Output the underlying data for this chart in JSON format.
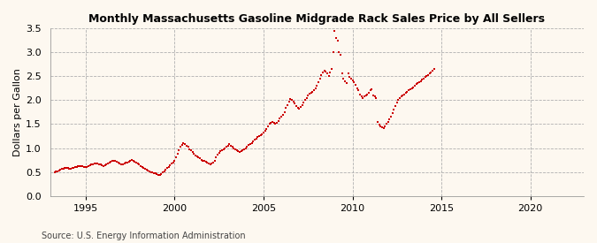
{
  "title": "Monthly Massachusetts Gasoline Midgrade Rack Sales Price by All Sellers",
  "ylabel": "Dollars per Gallon",
  "source": "Source: U.S. Energy Information Administration",
  "background_color": "#fdf8f0",
  "plot_bg_color": "#fdf8f0",
  "marker_color": "#cc0000",
  "xlim": [
    1993.0,
    2023.0
  ],
  "ylim": [
    0.0,
    3.5
  ],
  "yticks": [
    0.0,
    0.5,
    1.0,
    1.5,
    2.0,
    2.5,
    3.0,
    3.5
  ],
  "xticks": [
    1995,
    2000,
    2005,
    2010,
    2015,
    2020
  ],
  "data": [
    [
      1993.25,
      0.5
    ],
    [
      1993.33,
      0.51
    ],
    [
      1993.42,
      0.52
    ],
    [
      1993.5,
      0.53
    ],
    [
      1993.58,
      0.54
    ],
    [
      1993.67,
      0.56
    ],
    [
      1993.75,
      0.57
    ],
    [
      1993.83,
      0.58
    ],
    [
      1993.92,
      0.59
    ],
    [
      1994.0,
      0.58
    ],
    [
      1994.08,
      0.57
    ],
    [
      1994.17,
      0.57
    ],
    [
      1994.25,
      0.58
    ],
    [
      1994.33,
      0.59
    ],
    [
      1994.42,
      0.6
    ],
    [
      1994.5,
      0.61
    ],
    [
      1994.58,
      0.62
    ],
    [
      1994.67,
      0.63
    ],
    [
      1994.75,
      0.63
    ],
    [
      1994.83,
      0.62
    ],
    [
      1994.92,
      0.61
    ],
    [
      1995.0,
      0.6
    ],
    [
      1995.08,
      0.61
    ],
    [
      1995.17,
      0.62
    ],
    [
      1995.25,
      0.64
    ],
    [
      1995.33,
      0.65
    ],
    [
      1995.42,
      0.66
    ],
    [
      1995.5,
      0.67
    ],
    [
      1995.58,
      0.68
    ],
    [
      1995.67,
      0.67
    ],
    [
      1995.75,
      0.66
    ],
    [
      1995.83,
      0.65
    ],
    [
      1995.92,
      0.64
    ],
    [
      1996.0,
      0.63
    ],
    [
      1996.08,
      0.64
    ],
    [
      1996.17,
      0.66
    ],
    [
      1996.25,
      0.68
    ],
    [
      1996.33,
      0.7
    ],
    [
      1996.42,
      0.72
    ],
    [
      1996.5,
      0.73
    ],
    [
      1996.58,
      0.74
    ],
    [
      1996.67,
      0.73
    ],
    [
      1996.75,
      0.71
    ],
    [
      1996.83,
      0.69
    ],
    [
      1996.92,
      0.67
    ],
    [
      1997.0,
      0.65
    ],
    [
      1997.08,
      0.66
    ],
    [
      1997.17,
      0.67
    ],
    [
      1997.25,
      0.69
    ],
    [
      1997.33,
      0.7
    ],
    [
      1997.42,
      0.72
    ],
    [
      1997.5,
      0.74
    ],
    [
      1997.58,
      0.75
    ],
    [
      1997.67,
      0.74
    ],
    [
      1997.75,
      0.72
    ],
    [
      1997.83,
      0.7
    ],
    [
      1997.92,
      0.68
    ],
    [
      1998.0,
      0.65
    ],
    [
      1998.08,
      0.63
    ],
    [
      1998.17,
      0.61
    ],
    [
      1998.25,
      0.59
    ],
    [
      1998.33,
      0.57
    ],
    [
      1998.42,
      0.55
    ],
    [
      1998.5,
      0.53
    ],
    [
      1998.58,
      0.51
    ],
    [
      1998.67,
      0.5
    ],
    [
      1998.75,
      0.49
    ],
    [
      1998.83,
      0.48
    ],
    [
      1998.92,
      0.47
    ],
    [
      1999.0,
      0.45
    ],
    [
      1999.08,
      0.43
    ],
    [
      1999.17,
      0.44
    ],
    [
      1999.25,
      0.46
    ],
    [
      1999.33,
      0.49
    ],
    [
      1999.42,
      0.52
    ],
    [
      1999.5,
      0.55
    ],
    [
      1999.58,
      0.58
    ],
    [
      1999.67,
      0.61
    ],
    [
      1999.75,
      0.64
    ],
    [
      1999.83,
      0.67
    ],
    [
      1999.92,
      0.7
    ],
    [
      2000.0,
      0.73
    ],
    [
      2000.08,
      0.8
    ],
    [
      2000.17,
      0.88
    ],
    [
      2000.25,
      0.95
    ],
    [
      2000.33,
      1.02
    ],
    [
      2000.42,
      1.07
    ],
    [
      2000.5,
      1.1
    ],
    [
      2000.58,
      1.08
    ],
    [
      2000.67,
      1.05
    ],
    [
      2000.75,
      1.02
    ],
    [
      2000.83,
      0.98
    ],
    [
      2000.92,
      0.95
    ],
    [
      2001.0,
      0.92
    ],
    [
      2001.08,
      0.88
    ],
    [
      2001.17,
      0.85
    ],
    [
      2001.25,
      0.83
    ],
    [
      2001.33,
      0.8
    ],
    [
      2001.42,
      0.78
    ],
    [
      2001.5,
      0.76
    ],
    [
      2001.58,
      0.74
    ],
    [
      2001.67,
      0.73
    ],
    [
      2001.75,
      0.71
    ],
    [
      2001.83,
      0.7
    ],
    [
      2001.92,
      0.68
    ],
    [
      2002.0,
      0.65
    ],
    [
      2002.08,
      0.67
    ],
    [
      2002.17,
      0.7
    ],
    [
      2002.25,
      0.73
    ],
    [
      2002.33,
      0.8
    ],
    [
      2002.42,
      0.86
    ],
    [
      2002.5,
      0.9
    ],
    [
      2002.58,
      0.93
    ],
    [
      2002.67,
      0.95
    ],
    [
      2002.75,
      0.98
    ],
    [
      2002.83,
      1.0
    ],
    [
      2002.92,
      1.03
    ],
    [
      2003.0,
      1.05
    ],
    [
      2003.08,
      1.08
    ],
    [
      2003.17,
      1.05
    ],
    [
      2003.25,
      1.02
    ],
    [
      2003.33,
      1.0
    ],
    [
      2003.42,
      0.97
    ],
    [
      2003.5,
      0.95
    ],
    [
      2003.58,
      0.93
    ],
    [
      2003.67,
      0.92
    ],
    [
      2003.75,
      0.93
    ],
    [
      2003.83,
      0.95
    ],
    [
      2003.92,
      0.97
    ],
    [
      2004.0,
      1.0
    ],
    [
      2004.08,
      1.03
    ],
    [
      2004.17,
      1.06
    ],
    [
      2004.25,
      1.08
    ],
    [
      2004.33,
      1.1
    ],
    [
      2004.42,
      1.13
    ],
    [
      2004.5,
      1.17
    ],
    [
      2004.58,
      1.2
    ],
    [
      2004.67,
      1.23
    ],
    [
      2004.75,
      1.25
    ],
    [
      2004.83,
      1.27
    ],
    [
      2004.92,
      1.29
    ],
    [
      2005.0,
      1.32
    ],
    [
      2005.08,
      1.36
    ],
    [
      2005.17,
      1.4
    ],
    [
      2005.25,
      1.45
    ],
    [
      2005.33,
      1.5
    ],
    [
      2005.42,
      1.53
    ],
    [
      2005.5,
      1.55
    ],
    [
      2005.58,
      1.52
    ],
    [
      2005.67,
      1.5
    ],
    [
      2005.75,
      1.53
    ],
    [
      2005.83,
      1.57
    ],
    [
      2005.92,
      1.61
    ],
    [
      2006.0,
      1.65
    ],
    [
      2006.08,
      1.7
    ],
    [
      2006.17,
      1.75
    ],
    [
      2006.25,
      1.83
    ],
    [
      2006.33,
      1.9
    ],
    [
      2006.42,
      1.97
    ],
    [
      2006.5,
      2.02
    ],
    [
      2006.58,
      2.0
    ],
    [
      2006.67,
      1.97
    ],
    [
      2006.75,
      1.93
    ],
    [
      2006.83,
      1.88
    ],
    [
      2006.92,
      1.84
    ],
    [
      2007.0,
      1.82
    ],
    [
      2007.08,
      1.85
    ],
    [
      2007.17,
      1.9
    ],
    [
      2007.25,
      1.95
    ],
    [
      2007.33,
      2.0
    ],
    [
      2007.42,
      2.05
    ],
    [
      2007.5,
      2.1
    ],
    [
      2007.58,
      2.13
    ],
    [
      2007.67,
      2.15
    ],
    [
      2007.75,
      2.18
    ],
    [
      2007.83,
      2.2
    ],
    [
      2007.92,
      2.25
    ],
    [
      2008.0,
      2.3
    ],
    [
      2008.08,
      2.38
    ],
    [
      2008.17,
      2.45
    ],
    [
      2008.25,
      2.52
    ],
    [
      2008.33,
      2.58
    ],
    [
      2008.42,
      2.62
    ],
    [
      2008.5,
      2.6
    ],
    [
      2008.58,
      2.55
    ],
    [
      2008.67,
      2.5
    ],
    [
      2008.75,
      2.58
    ],
    [
      2008.83,
      2.65
    ],
    [
      2008.92,
      3.0
    ],
    [
      2009.0,
      3.45
    ],
    [
      2009.08,
      3.3
    ],
    [
      2009.17,
      3.25
    ],
    [
      2009.25,
      3.0
    ],
    [
      2009.33,
      2.95
    ],
    [
      2009.42,
      2.55
    ],
    [
      2009.5,
      2.45
    ],
    [
      2009.58,
      2.4
    ],
    [
      2009.67,
      2.35
    ],
    [
      2009.75,
      2.55
    ],
    [
      2009.83,
      2.48
    ],
    [
      2009.92,
      2.45
    ],
    [
      2010.0,
      2.42
    ],
    [
      2010.08,
      2.38
    ],
    [
      2010.17,
      2.32
    ],
    [
      2010.25,
      2.25
    ],
    [
      2010.33,
      2.2
    ],
    [
      2010.42,
      2.12
    ],
    [
      2010.5,
      2.08
    ],
    [
      2010.58,
      2.05
    ],
    [
      2010.67,
      2.08
    ],
    [
      2010.75,
      2.1
    ],
    [
      2010.83,
      2.12
    ],
    [
      2010.92,
      2.15
    ],
    [
      2011.0,
      2.2
    ],
    [
      2011.08,
      2.22
    ],
    [
      2011.17,
      2.1
    ],
    [
      2011.25,
      2.08
    ],
    [
      2011.33,
      2.05
    ],
    [
      2011.42,
      1.55
    ],
    [
      2011.5,
      1.48
    ],
    [
      2011.58,
      1.45
    ],
    [
      2011.67,
      1.43
    ],
    [
      2011.75,
      1.42
    ],
    [
      2011.83,
      1.45
    ],
    [
      2011.92,
      1.5
    ],
    [
      2012.0,
      1.55
    ],
    [
      2012.08,
      1.6
    ],
    [
      2012.17,
      1.65
    ],
    [
      2012.25,
      1.72
    ],
    [
      2012.33,
      1.8
    ],
    [
      2012.42,
      1.88
    ],
    [
      2012.5,
      1.95
    ],
    [
      2012.58,
      2.0
    ],
    [
      2012.67,
      2.05
    ],
    [
      2012.75,
      2.08
    ],
    [
      2012.83,
      2.1
    ],
    [
      2012.92,
      2.12
    ],
    [
      2013.0,
      2.15
    ],
    [
      2013.08,
      2.18
    ],
    [
      2013.17,
      2.2
    ],
    [
      2013.25,
      2.23
    ],
    [
      2013.33,
      2.25
    ],
    [
      2013.42,
      2.27
    ],
    [
      2013.5,
      2.3
    ],
    [
      2013.58,
      2.33
    ],
    [
      2013.67,
      2.35
    ],
    [
      2013.75,
      2.38
    ],
    [
      2013.83,
      2.4
    ],
    [
      2013.92,
      2.43
    ],
    [
      2014.0,
      2.45
    ],
    [
      2014.08,
      2.48
    ],
    [
      2014.17,
      2.5
    ],
    [
      2014.25,
      2.53
    ],
    [
      2014.33,
      2.55
    ],
    [
      2014.42,
      2.58
    ],
    [
      2014.5,
      2.62
    ],
    [
      2014.58,
      2.65
    ]
  ]
}
